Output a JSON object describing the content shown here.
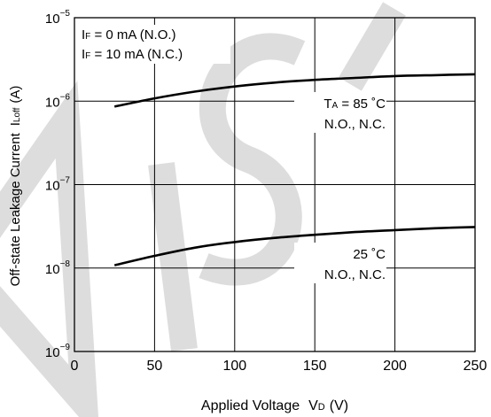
{
  "chart_data": {
    "type": "line",
    "x_axis": {
      "label_main": "Applied Voltage",
      "label_var": "V",
      "label_sub": "D",
      "label_unit": "(V)",
      "range": [
        0,
        250
      ],
      "ticks": [
        0,
        50,
        100,
        150,
        200,
        250
      ],
      "tick_labels": [
        "0",
        "50",
        "100",
        "150",
        "200",
        "250"
      ]
    },
    "y_axis": {
      "label_main": "Off-state Leakage Current",
      "label_var": "I",
      "label_sub": "Loff",
      "label_unit": "(A)",
      "scale": "log",
      "range": [
        1e-09,
        1e-05
      ],
      "ticks": [
        1e-09,
        1e-08,
        1e-07,
        1e-06,
        1e-05
      ],
      "tick_exponents": [
        "−9",
        "−8",
        "−7",
        "−6",
        "−5"
      ],
      "tick_base": "10"
    },
    "grid": true,
    "conditions": [
      {
        "var": "I",
        "sub": "F",
        "text": " = 0 mA (N.O.)"
      },
      {
        "var": "I",
        "sub": "F",
        "text": " = 10 mA (N.C.)"
      }
    ],
    "series": [
      {
        "line1_var": "T",
        "line1_sub": "A",
        "line1_text": " = 85 ˚C",
        "line2": "N.O., N.C.",
        "x": [
          25,
          50,
          75,
          100,
          125,
          150,
          175,
          200,
          225,
          250
        ],
        "y": [
          8.6e-07,
          1.08e-06,
          1.3e-06,
          1.5e-06,
          1.67e-06,
          1.8e-06,
          1.9e-06,
          2e-06,
          2.05e-06,
          2.1e-06
        ]
      },
      {
        "line1": "25 ˚C",
        "line2": "N.O., N.C.",
        "x": [
          25,
          50,
          75,
          100,
          125,
          150,
          175,
          200,
          225,
          250
        ],
        "y": [
          1.08e-08,
          1.4e-08,
          1.75e-08,
          2.05e-08,
          2.3e-08,
          2.5e-08,
          2.7e-08,
          2.85e-08,
          3e-08,
          3.1e-08
        ]
      }
    ]
  }
}
